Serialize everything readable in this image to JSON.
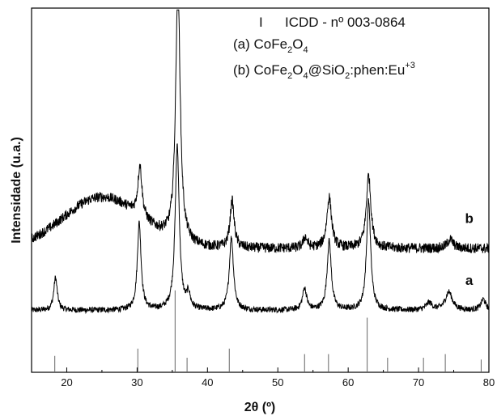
{
  "chart_data": {
    "type": "line",
    "xlabel": "2θ (º)",
    "ylabel": "Intensidade (u.a.)",
    "xlim": [
      15,
      80
    ],
    "x_ticks": [
      20,
      30,
      40,
      50,
      60,
      70,
      80
    ],
    "y_ticks": [],
    "grid": false,
    "legend": {
      "placement": "top-right",
      "reference_marker": "I",
      "reference_text": "ICDD - nº 003-0864",
      "entries": [
        {
          "prefix": "(a) CoFe",
          "sub1": "2",
          "mid1": "O",
          "sub2": "4",
          "tail": "",
          "sup": ""
        },
        {
          "prefix": "(b) CoFe",
          "sub1": "2",
          "mid1": "O",
          "sub2": "4",
          "tail": "@SiO",
          "sub3": "2",
          "tail2": ":phen:Eu",
          "sup": "+3"
        }
      ]
    },
    "series": [
      {
        "name": "a",
        "baseline": 0.17,
        "noise": 0.008,
        "peaks": [
          {
            "x": 18.4,
            "h": 0.09,
            "w": 0.3
          },
          {
            "x": 30.3,
            "h": 0.24,
            "w": 0.32
          },
          {
            "x": 35.7,
            "h": 0.45,
            "w": 0.35
          },
          {
            "x": 37.3,
            "h": 0.04,
            "w": 0.3
          },
          {
            "x": 43.4,
            "h": 0.2,
            "w": 0.35
          },
          {
            "x": 53.8,
            "h": 0.06,
            "w": 0.35
          },
          {
            "x": 57.3,
            "h": 0.19,
            "w": 0.35
          },
          {
            "x": 62.9,
            "h": 0.3,
            "w": 0.35
          },
          {
            "x": 71.5,
            "h": 0.02,
            "w": 0.5
          },
          {
            "x": 74.3,
            "h": 0.05,
            "w": 0.6
          },
          {
            "x": 79.2,
            "h": 0.03,
            "w": 0.4
          }
        ]
      },
      {
        "name": "b",
        "baseline": 0.34,
        "noise": 0.014,
        "amorphous": {
          "x": 25.0,
          "h": 0.14,
          "w": 5.5
        },
        "peaks": [
          {
            "x": 30.4,
            "h": 0.14,
            "w": 0.35
          },
          {
            "x": 35.8,
            "h": 0.72,
            "w": 0.38
          },
          {
            "x": 43.5,
            "h": 0.13,
            "w": 0.35
          },
          {
            "x": 53.9,
            "h": 0.03,
            "w": 0.35
          },
          {
            "x": 57.3,
            "h": 0.14,
            "w": 0.4
          },
          {
            "x": 62.9,
            "h": 0.2,
            "w": 0.4
          },
          {
            "x": 74.5,
            "h": 0.025,
            "w": 0.5
          }
        ]
      }
    ],
    "curve_labels": [
      {
        "series": "a",
        "text": "a"
      },
      {
        "series": "b",
        "text": "b"
      }
    ],
    "reference_lines": [
      {
        "x": 18.3,
        "h": 0.045
      },
      {
        "x": 30.1,
        "h": 0.065
      },
      {
        "x": 35.4,
        "h": 0.225
      },
      {
        "x": 37.1,
        "h": 0.04
      },
      {
        "x": 43.1,
        "h": 0.065
      },
      {
        "x": 53.8,
        "h": 0.05
      },
      {
        "x": 57.2,
        "h": 0.05
      },
      {
        "x": 62.7,
        "h": 0.15
      },
      {
        "x": 65.6,
        "h": 0.04
      },
      {
        "x": 70.7,
        "h": 0.04
      },
      {
        "x": 73.8,
        "h": 0.05
      },
      {
        "x": 78.9,
        "h": 0.035
      }
    ],
    "line_color": "#000000",
    "reference_color": "#666666"
  }
}
